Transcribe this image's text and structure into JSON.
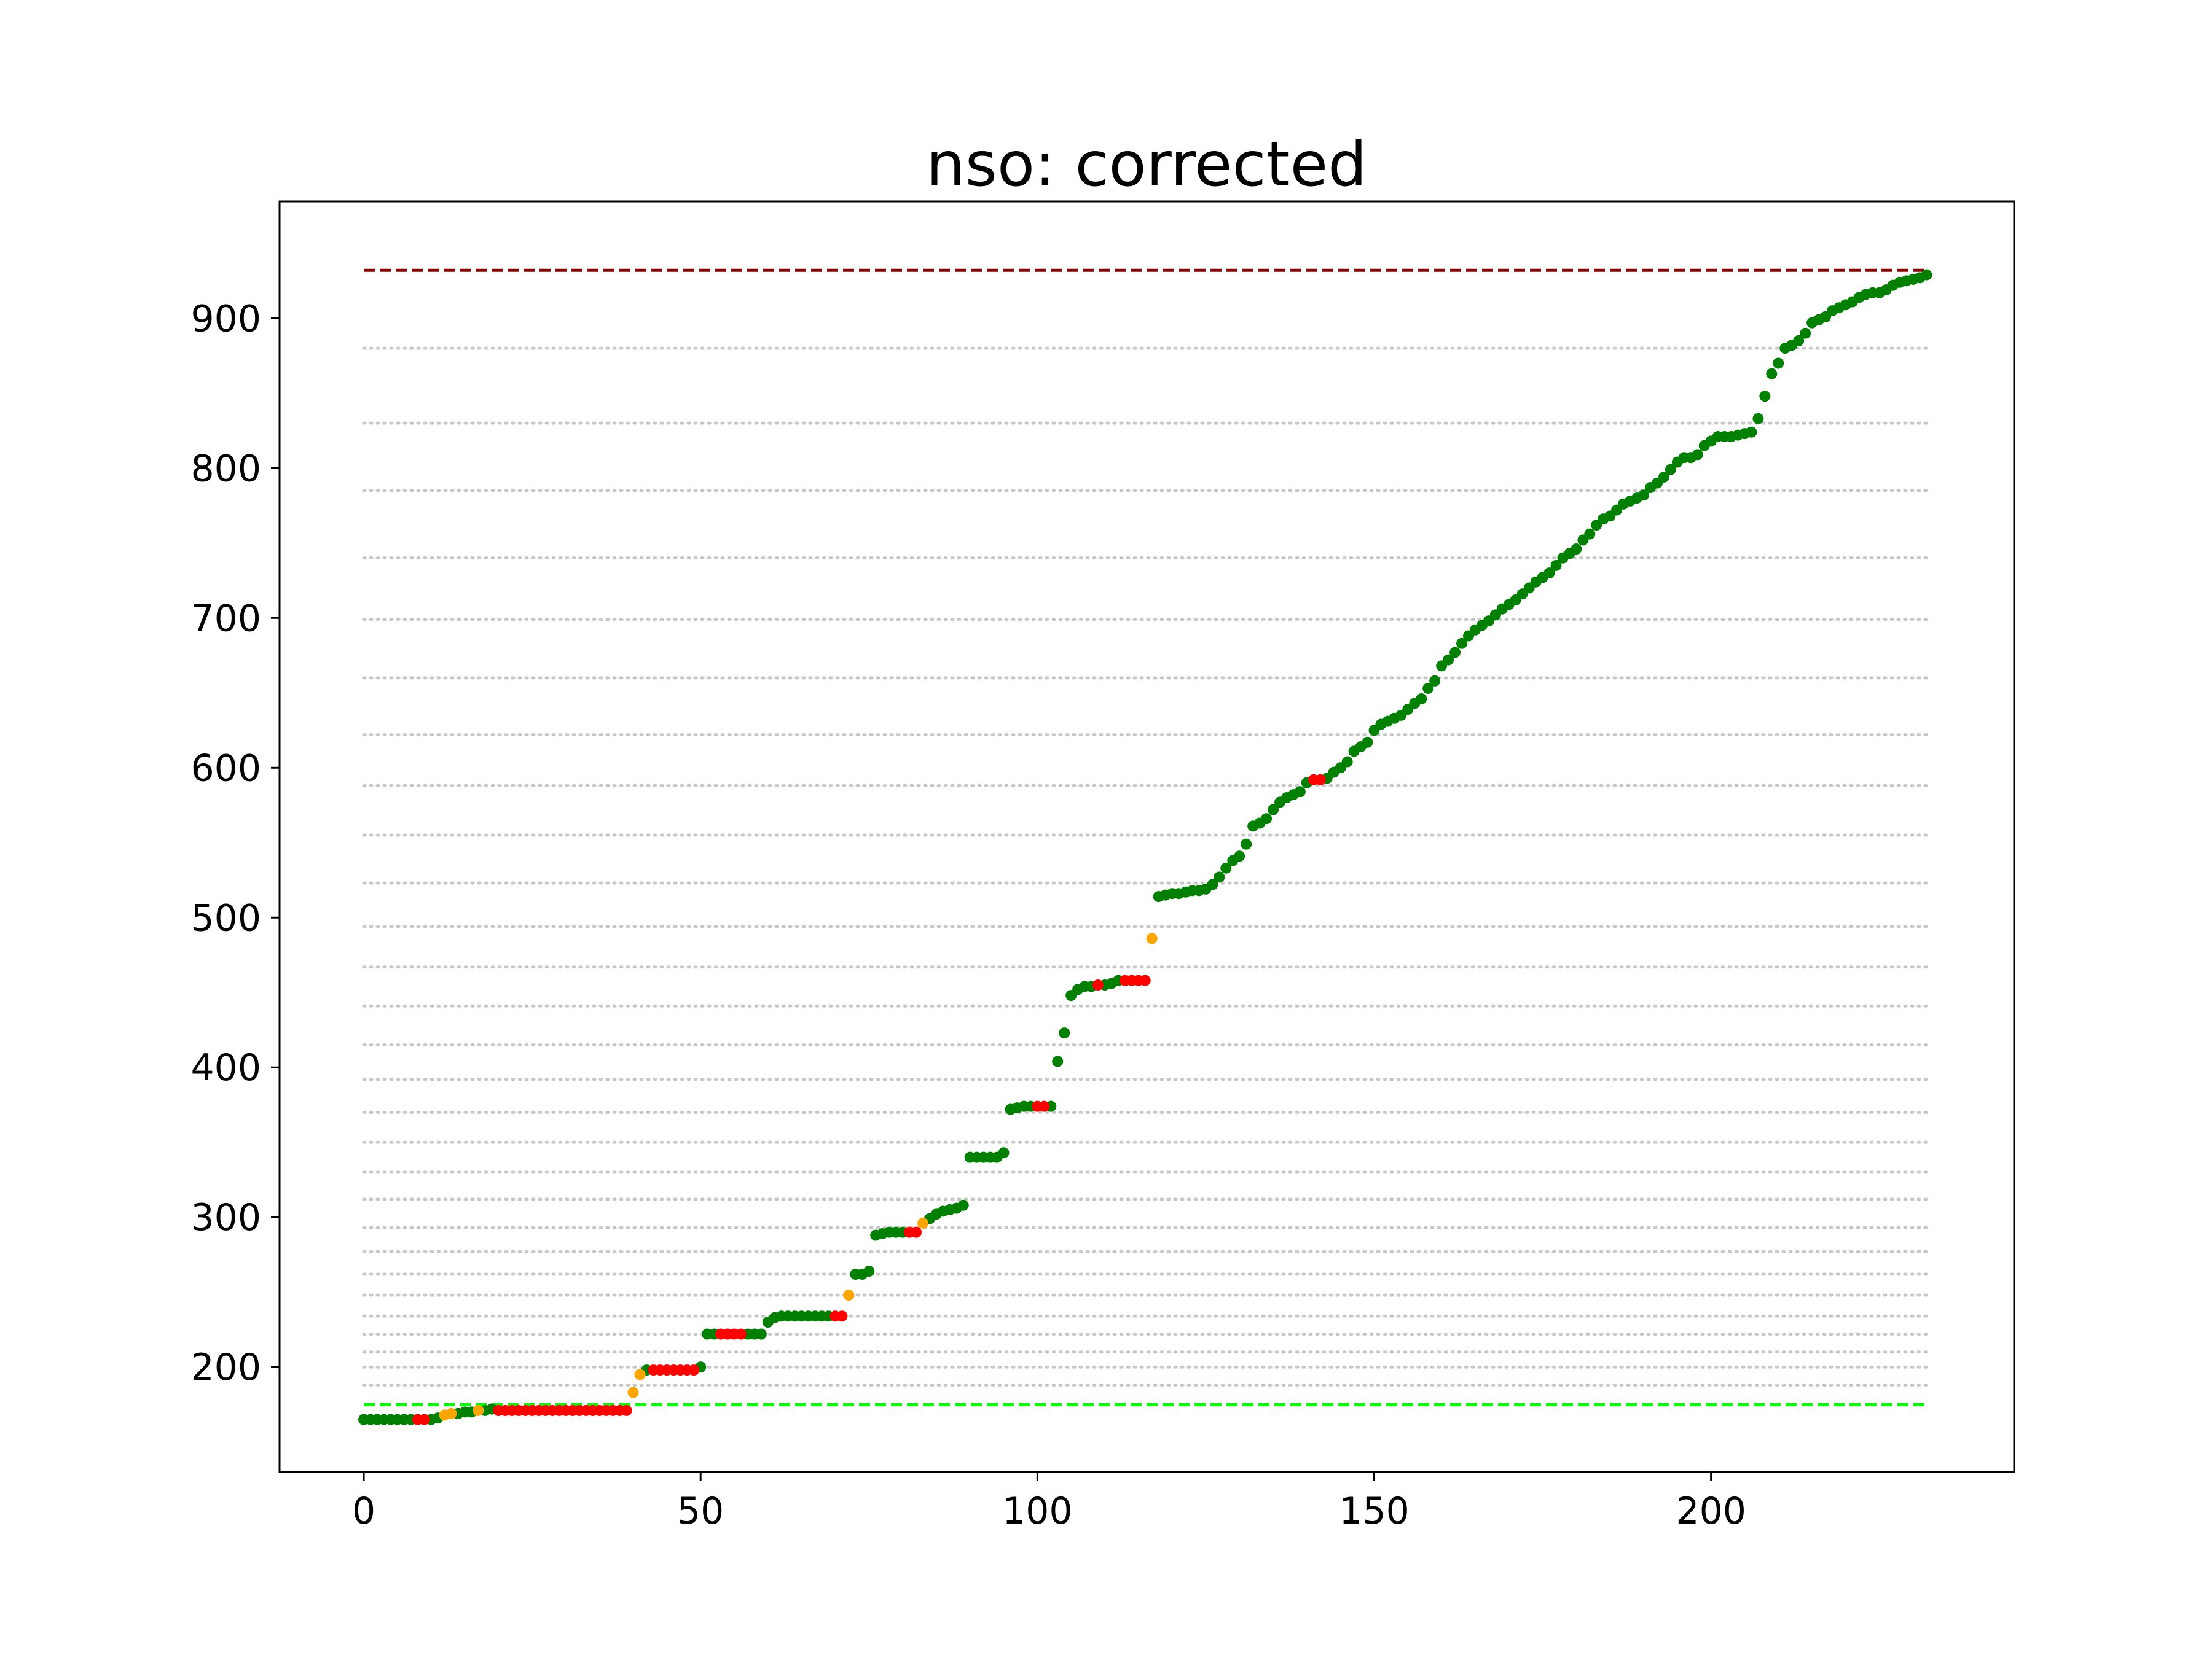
{
  "chart_data": {
    "type": "scatter",
    "title": "nso: corrected",
    "xlabel": "",
    "ylabel": "",
    "xlim": [
      -12.5,
      245
    ],
    "ylim": [
      130,
      978
    ],
    "x_ticks": [
      0,
      50,
      100,
      150,
      200
    ],
    "y_ticks": [
      200,
      300,
      400,
      500,
      600,
      700,
      800,
      900
    ],
    "grid": false,
    "colors": {
      "ok": "#008000",
      "bad": "#ff0000",
      "warn": "#ffa500",
      "upper_line": "#8b0000",
      "lower_line": "#00ff00",
      "reference_lines": "#c8c8c8"
    },
    "upper_line_y": 932,
    "lower_line_y": 175,
    "reference_lines": [
      188,
      200,
      210,
      222,
      234,
      248,
      262,
      277,
      293,
      312,
      330,
      350,
      370,
      392,
      415,
      441,
      467,
      494,
      523,
      555,
      588,
      622,
      660,
      699,
      740,
      785,
      830,
      880
    ],
    "points_ok": [
      [
        0,
        165
      ],
      [
        1,
        165
      ],
      [
        2,
        165
      ],
      [
        3,
        165
      ],
      [
        4,
        165
      ],
      [
        5,
        165
      ],
      [
        6,
        165
      ],
      [
        7,
        165
      ],
      [
        10,
        165
      ],
      [
        11,
        166
      ],
      [
        14,
        169
      ],
      [
        15,
        170
      ],
      [
        16,
        170
      ],
      [
        18,
        171
      ],
      [
        19,
        172
      ],
      [
        42,
        198
      ],
      [
        50,
        200
      ],
      [
        51,
        222
      ],
      [
        52,
        222
      ],
      [
        57,
        222
      ],
      [
        58,
        222
      ],
      [
        59,
        222
      ],
      [
        60,
        230
      ],
      [
        61,
        233
      ],
      [
        62,
        234
      ],
      [
        63,
        234
      ],
      [
        64,
        234
      ],
      [
        65,
        234
      ],
      [
        66,
        234
      ],
      [
        67,
        234
      ],
      [
        68,
        234
      ],
      [
        69,
        234
      ],
      [
        73,
        262
      ],
      [
        74,
        262
      ],
      [
        75,
        264
      ],
      [
        76,
        288
      ],
      [
        77,
        289
      ],
      [
        78,
        290
      ],
      [
        79,
        290
      ],
      [
        80,
        290
      ],
      [
        84,
        299
      ],
      [
        85,
        302
      ],
      [
        86,
        304
      ],
      [
        87,
        305
      ],
      [
        88,
        306
      ],
      [
        89,
        308
      ],
      [
        90,
        340
      ],
      [
        91,
        340
      ],
      [
        92,
        340
      ],
      [
        93,
        340
      ],
      [
        94,
        340
      ],
      [
        95,
        343
      ],
      [
        96,
        372
      ],
      [
        97,
        373
      ],
      [
        98,
        374
      ],
      [
        99,
        374
      ],
      [
        102,
        374
      ],
      [
        103,
        404
      ],
      [
        104,
        423
      ],
      [
        105,
        448
      ],
      [
        106,
        452
      ],
      [
        107,
        454
      ],
      [
        108,
        454
      ],
      [
        110,
        455
      ],
      [
        111,
        456
      ],
      [
        112,
        458
      ],
      [
        118,
        514
      ],
      [
        119,
        515
      ],
      [
        120,
        516
      ],
      [
        121,
        516
      ],
      [
        122,
        517
      ],
      [
        123,
        518
      ],
      [
        124,
        518
      ],
      [
        125,
        519
      ],
      [
        126,
        522
      ],
      [
        127,
        527
      ],
      [
        128,
        533
      ],
      [
        129,
        538
      ],
      [
        130,
        541
      ],
      [
        131,
        549
      ],
      [
        132,
        561
      ],
      [
        133,
        563
      ],
      [
        134,
        566
      ],
      [
        135,
        572
      ],
      [
        136,
        577
      ],
      [
        137,
        580
      ],
      [
        138,
        582
      ],
      [
        139,
        584
      ],
      [
        140,
        590
      ],
      [
        143,
        593
      ],
      [
        144,
        597
      ],
      [
        145,
        600
      ],
      [
        146,
        604
      ],
      [
        147,
        611
      ],
      [
        148,
        614
      ],
      [
        149,
        617
      ],
      [
        150,
        625
      ],
      [
        151,
        629
      ],
      [
        152,
        631
      ],
      [
        153,
        633
      ],
      [
        154,
        635
      ],
      [
        155,
        639
      ],
      [
        156,
        643
      ],
      [
        157,
        646
      ],
      [
        158,
        653
      ],
      [
        159,
        658
      ],
      [
        160,
        668
      ],
      [
        161,
        672
      ],
      [
        162,
        677
      ],
      [
        163,
        683
      ],
      [
        164,
        688
      ],
      [
        165,
        692
      ],
      [
        166,
        695
      ],
      [
        167,
        698
      ],
      [
        168,
        702
      ],
      [
        169,
        706
      ],
      [
        170,
        709
      ],
      [
        171,
        712
      ],
      [
        172,
        716
      ],
      [
        173,
        720
      ],
      [
        174,
        724
      ],
      [
        175,
        727
      ],
      [
        176,
        730
      ],
      [
        177,
        735
      ],
      [
        178,
        740
      ],
      [
        179,
        743
      ],
      [
        180,
        746
      ],
      [
        181,
        752
      ],
      [
        182,
        756
      ],
      [
        183,
        762
      ],
      [
        184,
        766
      ],
      [
        185,
        768
      ],
      [
        186,
        772
      ],
      [
        187,
        776
      ],
      [
        188,
        778
      ],
      [
        189,
        780
      ],
      [
        190,
        782
      ],
      [
        191,
        787
      ],
      [
        192,
        790
      ],
      [
        193,
        794
      ],
      [
        194,
        799
      ],
      [
        195,
        804
      ],
      [
        196,
        807
      ],
      [
        197,
        807
      ],
      [
        198,
        809
      ],
      [
        199,
        815
      ],
      [
        200,
        818
      ],
      [
        201,
        821
      ],
      [
        202,
        821
      ],
      [
        203,
        821
      ],
      [
        204,
        822
      ],
      [
        205,
        823
      ],
      [
        206,
        824
      ],
      [
        207,
        833
      ],
      [
        208,
        848
      ],
      [
        209,
        863
      ],
      [
        210,
        870
      ],
      [
        211,
        880
      ],
      [
        212,
        882
      ],
      [
        213,
        885
      ],
      [
        214,
        890
      ],
      [
        215,
        897
      ],
      [
        216,
        899
      ],
      [
        217,
        901
      ],
      [
        218,
        905
      ],
      [
        219,
        907
      ],
      [
        220,
        909
      ],
      [
        221,
        911
      ],
      [
        222,
        914
      ],
      [
        223,
        916
      ],
      [
        224,
        917
      ],
      [
        225,
        917
      ],
      [
        226,
        919
      ],
      [
        227,
        922
      ],
      [
        228,
        924
      ],
      [
        229,
        925
      ],
      [
        230,
        926
      ],
      [
        231,
        927
      ],
      [
        232,
        929
      ]
    ],
    "points_bad": [
      [
        8,
        165
      ],
      [
        9,
        165
      ],
      [
        20,
        171
      ],
      [
        21,
        171
      ],
      [
        22,
        171
      ],
      [
        23,
        171
      ],
      [
        24,
        171
      ],
      [
        25,
        171
      ],
      [
        26,
        171
      ],
      [
        27,
        171
      ],
      [
        28,
        171
      ],
      [
        29,
        171
      ],
      [
        30,
        171
      ],
      [
        31,
        171
      ],
      [
        32,
        171
      ],
      [
        33,
        171
      ],
      [
        34,
        171
      ],
      [
        35,
        171
      ],
      [
        36,
        171
      ],
      [
        37,
        171
      ],
      [
        38,
        171
      ],
      [
        39,
        171
      ],
      [
        43,
        198
      ],
      [
        44,
        198
      ],
      [
        45,
        198
      ],
      [
        46,
        198
      ],
      [
        47,
        198
      ],
      [
        48,
        198
      ],
      [
        49,
        198
      ],
      [
        53,
        222
      ],
      [
        54,
        222
      ],
      [
        55,
        222
      ],
      [
        56,
        222
      ],
      [
        70,
        234
      ],
      [
        71,
        234
      ],
      [
        81,
        290
      ],
      [
        82,
        290
      ],
      [
        100,
        374
      ],
      [
        101,
        374
      ],
      [
        109,
        455
      ],
      [
        113,
        458
      ],
      [
        114,
        458
      ],
      [
        115,
        458
      ],
      [
        116,
        458
      ],
      [
        141,
        592
      ],
      [
        142,
        592
      ]
    ],
    "points_warn": [
      [
        12,
        168
      ],
      [
        13,
        169
      ],
      [
        17,
        171
      ],
      [
        40,
        183
      ],
      [
        41,
        195
      ],
      [
        72,
        248
      ],
      [
        83,
        296
      ],
      [
        117,
        486
      ]
    ]
  }
}
